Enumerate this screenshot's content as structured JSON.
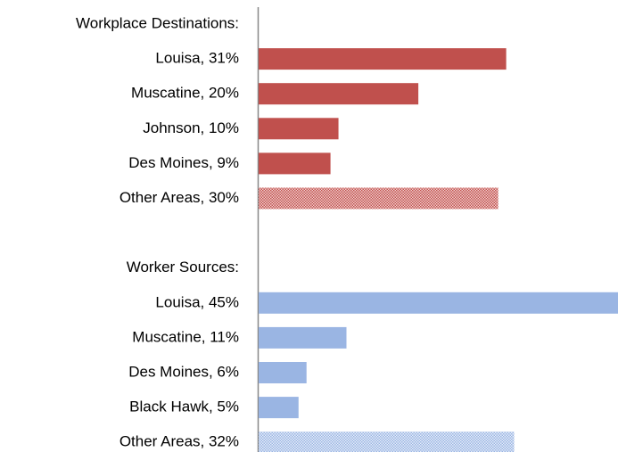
{
  "chart_data": {
    "type": "bar",
    "xlim": [
      0,
      45
    ],
    "groups": [
      {
        "title": "Workplace Destinations:",
        "color": "#c0504d",
        "categories": [
          "Louisa, 31%",
          "Muscatine, 20%",
          "Johnson, 10%",
          "Des Moines, 9%",
          "Other Areas, 30%"
        ],
        "values": [
          31,
          20,
          10,
          9,
          30
        ],
        "patterned": [
          false,
          false,
          false,
          false,
          true
        ]
      },
      {
        "title": "Worker Sources:",
        "color": "#9ab5e3",
        "categories": [
          "Louisa, 45%",
          "Muscatine, 11%",
          "Des Moines, 6%",
          "Black Hawk, 5%",
          "Other Areas, 32%"
        ],
        "values": [
          45,
          11,
          6,
          5,
          32
        ],
        "patterned": [
          false,
          false,
          false,
          false,
          true
        ]
      }
    ]
  }
}
